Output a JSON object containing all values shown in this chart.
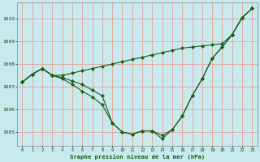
{
  "title": "Graphe pression niveau de la mer (hPa)",
  "background_color": "#c8eaed",
  "grid_color": "#e8a0a0",
  "line_color": "#1a5c1a",
  "xlim": [
    -0.5,
    23.5
  ],
  "ylim": [
    1004.4,
    1010.7
  ],
  "yticks": [
    1005,
    1006,
    1007,
    1008,
    1009,
    1010
  ],
  "xticks": [
    0,
    1,
    2,
    3,
    4,
    5,
    6,
    7,
    8,
    9,
    10,
    11,
    12,
    13,
    14,
    15,
    16,
    17,
    18,
    19,
    20,
    21,
    22,
    23
  ],
  "series1": [
    1007.2,
    1007.55,
    1007.8,
    1007.5,
    1007.5,
    1007.6,
    1007.7,
    1007.8,
    1007.9,
    1008.0,
    1008.1,
    1008.2,
    1008.3,
    1008.4,
    1008.5,
    1008.6,
    1008.7,
    1008.75,
    1008.8,
    1008.85,
    1008.9,
    1009.3,
    1010.05,
    1010.45
  ],
  "series2": [
    1007.2,
    1007.55,
    1007.8,
    1007.5,
    1007.4,
    1007.25,
    1007.1,
    1006.85,
    1006.6,
    1005.4,
    1005.0,
    1004.9,
    1005.05,
    1005.05,
    1004.85,
    1005.1,
    1005.7,
    1006.6,
    1007.35,
    1008.25,
    1008.75,
    1009.3,
    1010.05,
    1010.45
  ],
  "series3": [
    1007.2,
    1007.55,
    1007.8,
    1007.5,
    1007.35,
    1007.1,
    1006.8,
    1006.55,
    1006.2,
    1005.4,
    1005.0,
    1004.9,
    1005.05,
    1005.05,
    1004.7,
    1005.1,
    1005.7,
    1006.6,
    1007.35,
    1008.25,
    1008.75,
    1009.3,
    1010.05,
    1010.45
  ]
}
